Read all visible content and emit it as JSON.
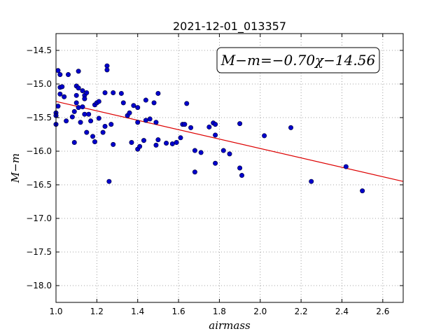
{
  "chart_data": {
    "type": "scatter",
    "title": "2021-12-01_013357",
    "xlabel": "airmass",
    "ylabel": "M−m",
    "xlim": [
      1.0,
      2.7
    ],
    "ylim": [
      -18.25,
      -14.25
    ],
    "y_inverted": true,
    "x_ticks": [
      1.0,
      1.2,
      1.4,
      1.6,
      1.8,
      2.0,
      2.2,
      2.4,
      2.6
    ],
    "x_tick_labels": [
      "1.0",
      "1.2",
      "1.4",
      "1.6",
      "1.8",
      "2.0",
      "2.2",
      "2.4",
      "2.6"
    ],
    "y_ticks": [
      -14.5,
      -15.0,
      -15.5,
      -16.0,
      -16.5,
      -17.0,
      -17.5,
      -18.0
    ],
    "y_tick_labels": [
      "−14.5",
      "−15.0",
      "−15.5",
      "−16.0",
      "−16.5",
      "−17.0",
      "−17.5",
      "−18.0"
    ],
    "grid": true,
    "annotation": "M−m=−0.70χ−14.56",
    "fit": {
      "slope": -0.7,
      "intercept": -14.56,
      "color": "#dd0000"
    },
    "point_color": "#0000cc",
    "points": [
      [
        1.0,
        -15.43
      ],
      [
        1.0,
        -15.47
      ],
      [
        1.0,
        -15.6
      ],
      [
        1.01,
        -15.33
      ],
      [
        1.01,
        -14.8
      ],
      [
        1.02,
        -14.86
      ],
      [
        1.02,
        -15.15
      ],
      [
        1.02,
        -15.05
      ],
      [
        1.03,
        -15.04
      ],
      [
        1.04,
        -15.19
      ],
      [
        1.05,
        -15.55
      ],
      [
        1.06,
        -14.86
      ],
      [
        1.08,
        -15.49
      ],
      [
        1.09,
        -15.41
      ],
      [
        1.09,
        -15.87
      ],
      [
        1.1,
        -15.28
      ],
      [
        1.1,
        -15.17
      ],
      [
        1.1,
        -15.03
      ],
      [
        1.11,
        -15.06
      ],
      [
        1.11,
        -14.81
      ],
      [
        1.11,
        -15.35
      ],
      [
        1.12,
        -15.57
      ],
      [
        1.13,
        -15.1
      ],
      [
        1.13,
        -15.34
      ],
      [
        1.14,
        -15.17
      ],
      [
        1.14,
        -15.22
      ],
      [
        1.14,
        -15.45
      ],
      [
        1.15,
        -15.13
      ],
      [
        1.15,
        -15.72
      ],
      [
        1.16,
        -15.45
      ],
      [
        1.17,
        -15.55
      ],
      [
        1.18,
        -15.78
      ],
      [
        1.19,
        -15.31
      ],
      [
        1.19,
        -15.86
      ],
      [
        1.2,
        -15.28
      ],
      [
        1.21,
        -15.51
      ],
      [
        1.21,
        -15.26
      ],
      [
        1.23,
        -15.72
      ],
      [
        1.24,
        -15.13
      ],
      [
        1.24,
        -15.63
      ],
      [
        1.25,
        -14.73
      ],
      [
        1.25,
        -14.79
      ],
      [
        1.26,
        -16.45
      ],
      [
        1.27,
        -15.6
      ],
      [
        1.28,
        -15.13
      ],
      [
        1.28,
        -15.9
      ],
      [
        1.32,
        -15.14
      ],
      [
        1.33,
        -15.28
      ],
      [
        1.35,
        -15.47
      ],
      [
        1.36,
        -15.43
      ],
      [
        1.37,
        -15.87
      ],
      [
        1.38,
        -15.32
      ],
      [
        1.4,
        -15.35
      ],
      [
        1.4,
        -15.57
      ],
      [
        1.4,
        -15.97
      ],
      [
        1.41,
        -15.93
      ],
      [
        1.43,
        -15.84
      ],
      [
        1.44,
        -15.24
      ],
      [
        1.44,
        -15.54
      ],
      [
        1.46,
        -15.52
      ],
      [
        1.48,
        -15.28
      ],
      [
        1.49,
        -15.57
      ],
      [
        1.49,
        -15.91
      ],
      [
        1.5,
        -15.83
      ],
      [
        1.5,
        -15.14
      ],
      [
        1.54,
        -15.88
      ],
      [
        1.57,
        -15.89
      ],
      [
        1.59,
        -15.87
      ],
      [
        1.61,
        -15.8
      ],
      [
        1.62,
        -15.6
      ],
      [
        1.63,
        -15.6
      ],
      [
        1.64,
        -15.29
      ],
      [
        1.66,
        -15.65
      ],
      [
        1.68,
        -16.31
      ],
      [
        1.68,
        -15.99
      ],
      [
        1.71,
        -16.02
      ],
      [
        1.75,
        -15.64
      ],
      [
        1.77,
        -15.58
      ],
      [
        1.78,
        -15.76
      ],
      [
        1.78,
        -16.18
      ],
      [
        1.78,
        -15.6
      ],
      [
        1.82,
        -15.99
      ],
      [
        1.85,
        -16.04
      ],
      [
        1.9,
        -15.59
      ],
      [
        1.9,
        -16.25
      ],
      [
        1.91,
        -16.36
      ],
      [
        2.02,
        -15.77
      ],
      [
        2.15,
        -15.65
      ],
      [
        2.25,
        -16.45
      ],
      [
        2.42,
        -16.23
      ],
      [
        2.5,
        -16.59
      ]
    ]
  }
}
